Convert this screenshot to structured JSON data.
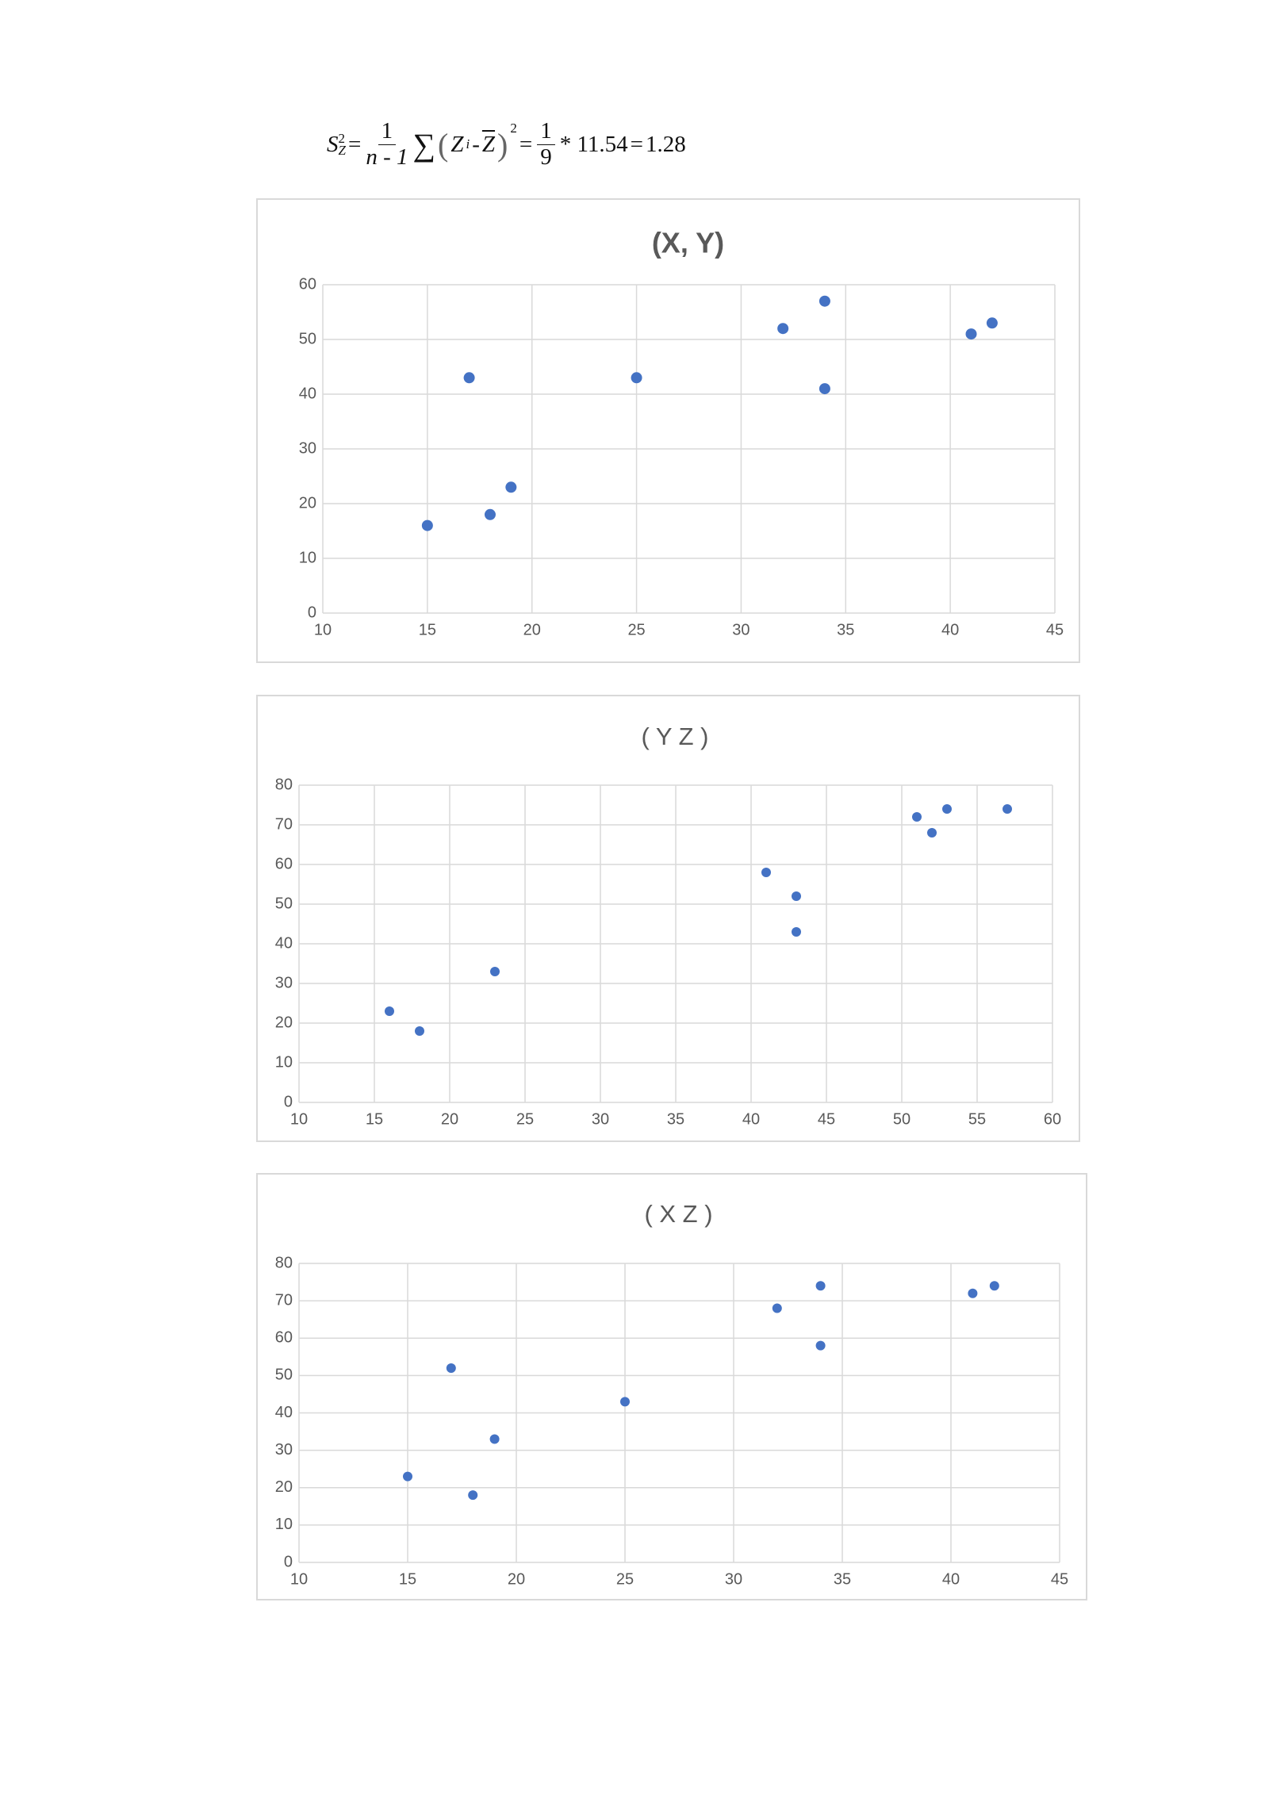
{
  "formula": {
    "variable": "S",
    "variable_subscript": "Z",
    "exponent": "2",
    "equals": "=",
    "fraction_1": {
      "numerator": "1",
      "denominator": "n - 1"
    },
    "sum_symbol": "∑",
    "open_paren": "(",
    "term": "Z",
    "term_subscript": "i",
    "minus": "-",
    "mean": "Z",
    "close_paren": ")",
    "fraction_2": {
      "numerator": "1",
      "denominator": "9"
    },
    "multiplier": "* 11.54",
    "result": "1.28"
  },
  "chart_data": [
    {
      "type": "scatter",
      "title": "(X, Y)",
      "color": "#4472c4",
      "grid": true,
      "x": [
        15,
        17,
        18,
        19,
        25,
        32,
        34,
        34,
        41,
        42
      ],
      "values": [
        16,
        43,
        18,
        23,
        43,
        52,
        57,
        41,
        51,
        53
      ],
      "xlim": [
        10,
        45
      ],
      "xticks": [
        10,
        15,
        20,
        25,
        30,
        35,
        40,
        45
      ],
      "ylim": [
        0,
        60
      ],
      "yticks": [
        0,
        10,
        20,
        30,
        40,
        50,
        60
      ]
    },
    {
      "type": "scatter",
      "title": "( Y Z )",
      "color": "#4472c4",
      "grid": true,
      "x": [
        16,
        18,
        23,
        41,
        43,
        43,
        51,
        52,
        53,
        57
      ],
      "values": [
        23,
        18,
        33,
        58,
        52,
        43,
        72,
        68,
        74,
        74
      ],
      "xlim": [
        10,
        60
      ],
      "xticks": [
        10,
        15,
        20,
        25,
        30,
        35,
        40,
        45,
        50,
        55,
        60
      ],
      "ylim": [
        0,
        80
      ],
      "yticks": [
        0,
        10,
        20,
        30,
        40,
        50,
        60,
        70,
        80
      ]
    },
    {
      "type": "scatter",
      "title": "( X Z )",
      "color": "#4472c4",
      "grid": true,
      "x": [
        15,
        17,
        18,
        19,
        25,
        32,
        34,
        34,
        41,
        42
      ],
      "values": [
        23,
        52,
        18,
        33,
        43,
        68,
        74,
        58,
        72,
        74
      ],
      "xlim": [
        10,
        45
      ],
      "xticks": [
        10,
        15,
        20,
        25,
        30,
        35,
        40,
        45
      ],
      "ylim": [
        0,
        80
      ],
      "yticks": [
        0,
        10,
        20,
        30,
        40,
        50,
        60,
        70,
        80
      ]
    }
  ]
}
